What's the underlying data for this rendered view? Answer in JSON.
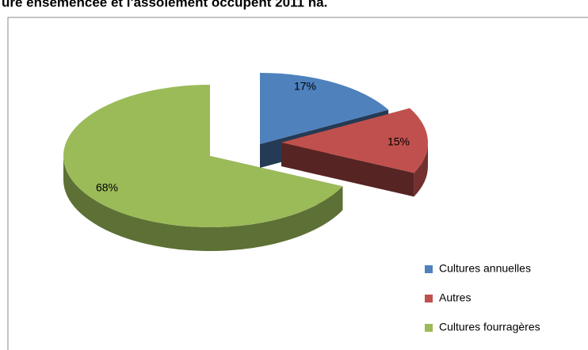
{
  "chart_data": {
    "type": "pie",
    "title": "ure ensemencée et l'assolement occupent 2011 ha.",
    "categories": [
      "Cultures annuelles",
      "Autres",
      "Cultures fourragères"
    ],
    "values": [
      17,
      15,
      68
    ],
    "value_labels": [
      "17%",
      "15%",
      "68%"
    ],
    "colors": [
      "#4f81bd",
      "#c0504d",
      "#9bbb59"
    ],
    "legend": "right"
  }
}
